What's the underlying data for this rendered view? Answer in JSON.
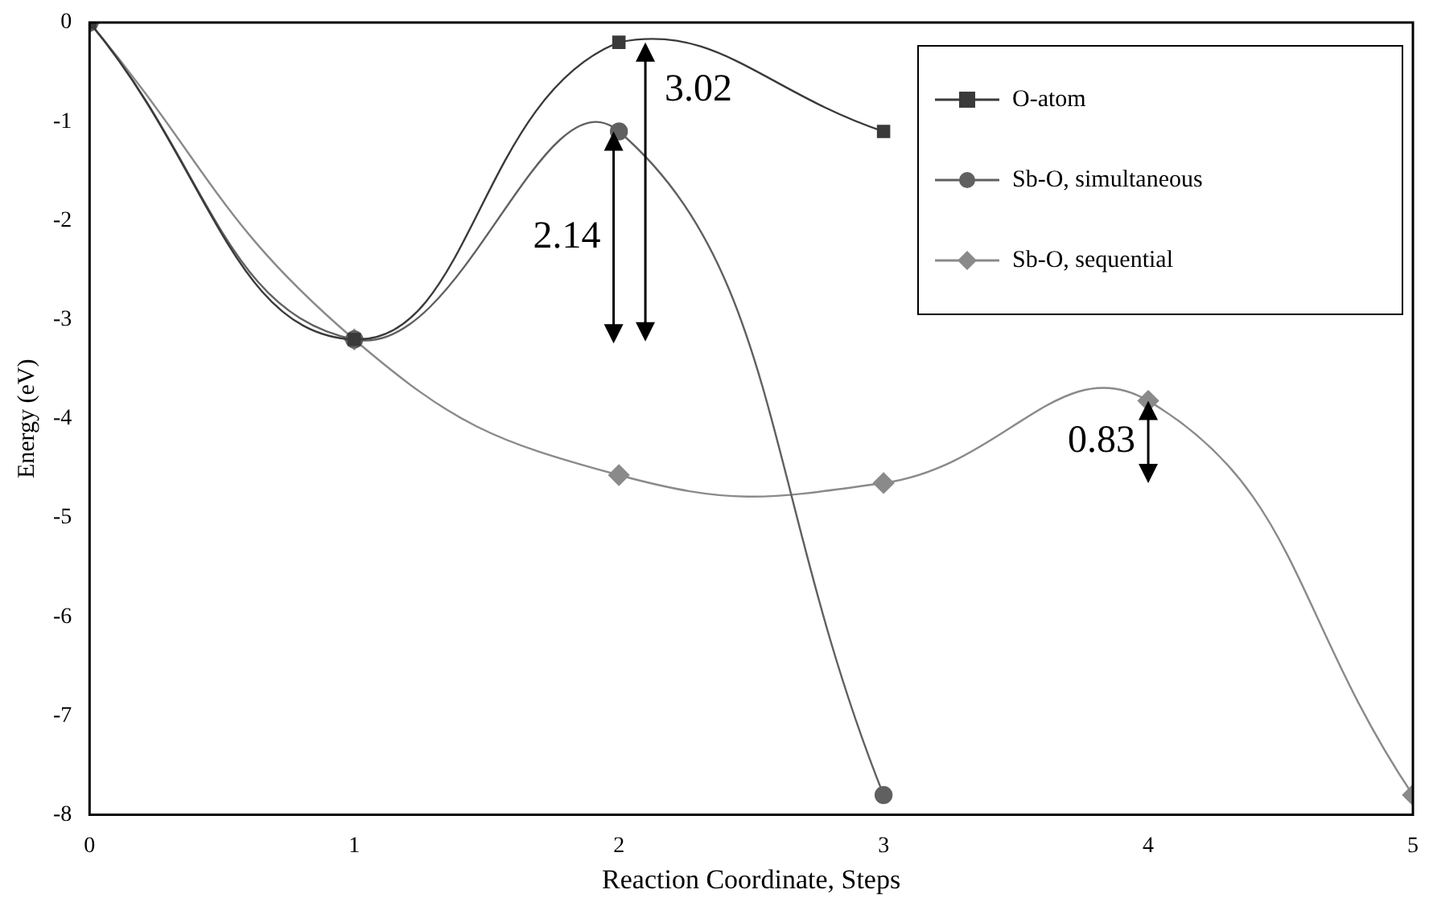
{
  "chart_data": {
    "type": "line",
    "xlabel": "Reaction Coordinate, Steps",
    "ylabel": "Energy (eV)",
    "x": [
      0,
      1,
      2,
      3,
      4,
      5
    ],
    "xlim": [
      0,
      5
    ],
    "xticks": [
      0,
      1,
      2,
      3,
      4,
      5
    ],
    "ylim": [
      -8,
      0
    ],
    "yticks": [
      -8,
      -7,
      -6,
      -5,
      -4,
      -3,
      -2,
      -1,
      0
    ],
    "grid": false,
    "legend": "top right",
    "series": [
      {
        "name": "O-atom",
        "color": "#3a3a3a",
        "marker": "square",
        "values": [
          0,
          -3.2,
          -0.2,
          -1.1,
          null,
          null
        ]
      },
      {
        "name": "Sb-O, simultaneous",
        "color": "#606060",
        "marker": "circle",
        "values": [
          0,
          -3.2,
          -1.1,
          -7.8,
          null,
          null
        ]
      },
      {
        "name": "Sb-O, sequential",
        "color": "#8a8a8a",
        "marker": "diamond",
        "values": [
          0,
          -3.2,
          -4.57,
          -4.65,
          -3.82,
          -7.8
        ]
      }
    ],
    "annotations": [
      {
        "text": "2.14",
        "x": 1.98,
        "y": -1.1
      },
      {
        "text": "3.02",
        "x": 2.1,
        "y": -0.2
      },
      {
        "text": "0.83",
        "x": 4,
        "y": -3.82
      }
    ]
  }
}
